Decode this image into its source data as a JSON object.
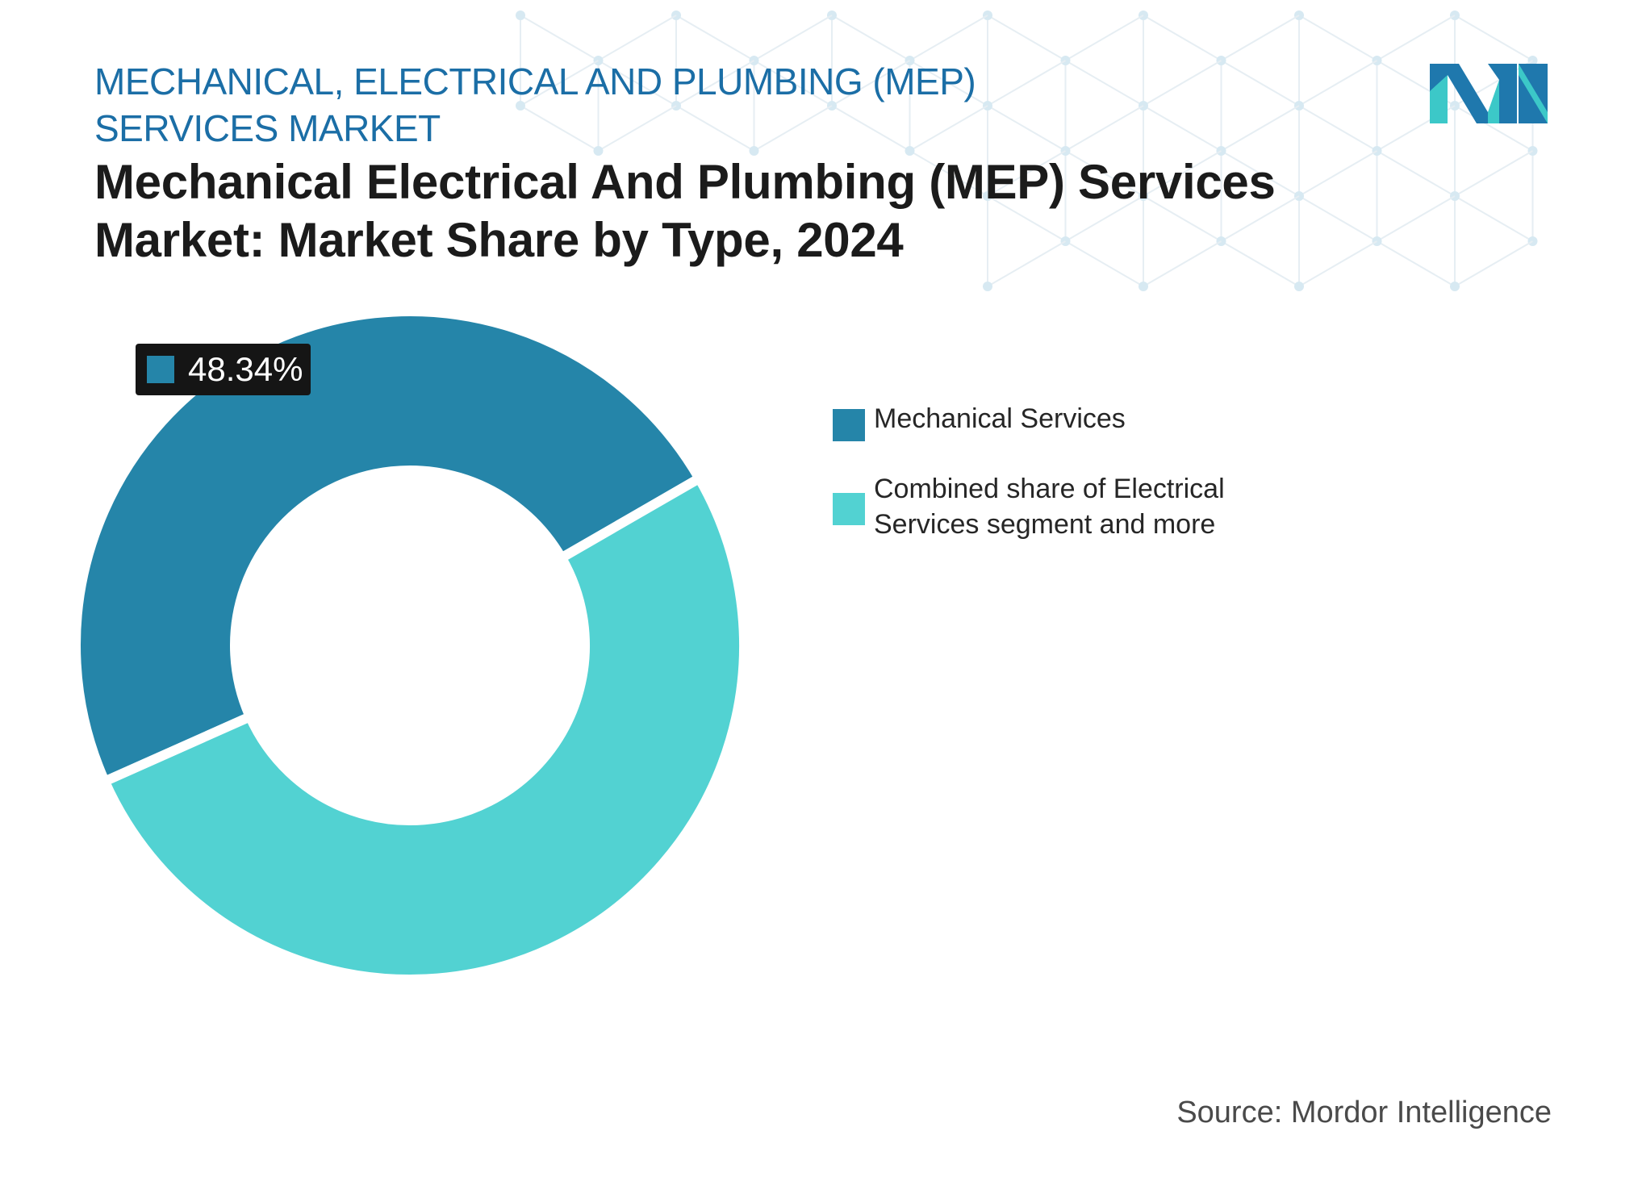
{
  "header": {
    "supertitle": "MECHANICAL, ELECTRICAL AND PLUMBING (MEP) SERVICES MARKET",
    "title": "Mechanical Electrical And Plumbing (MEP) Services Market: Market Share by Type, 2024"
  },
  "logo": {
    "icon": "mordor-intelligence-logo",
    "colors": [
      "#1f78ad",
      "#3cc8c8"
    ]
  },
  "chart_data": {
    "type": "pie",
    "variant": "donut",
    "title": "Mechanical Electrical And Plumbing (MEP) Services Market: Market Share by Type, 2024",
    "categories": [
      "Mechanical Services",
      "Combined share of Electrical Services segment and more"
    ],
    "values": [
      48.34,
      51.66
    ],
    "colors": [
      "#2585a9",
      "#52d2d2"
    ],
    "data_labels": [
      "48.34%"
    ],
    "legend_position": "right"
  },
  "source": "Source: Mordor Intelligence"
}
